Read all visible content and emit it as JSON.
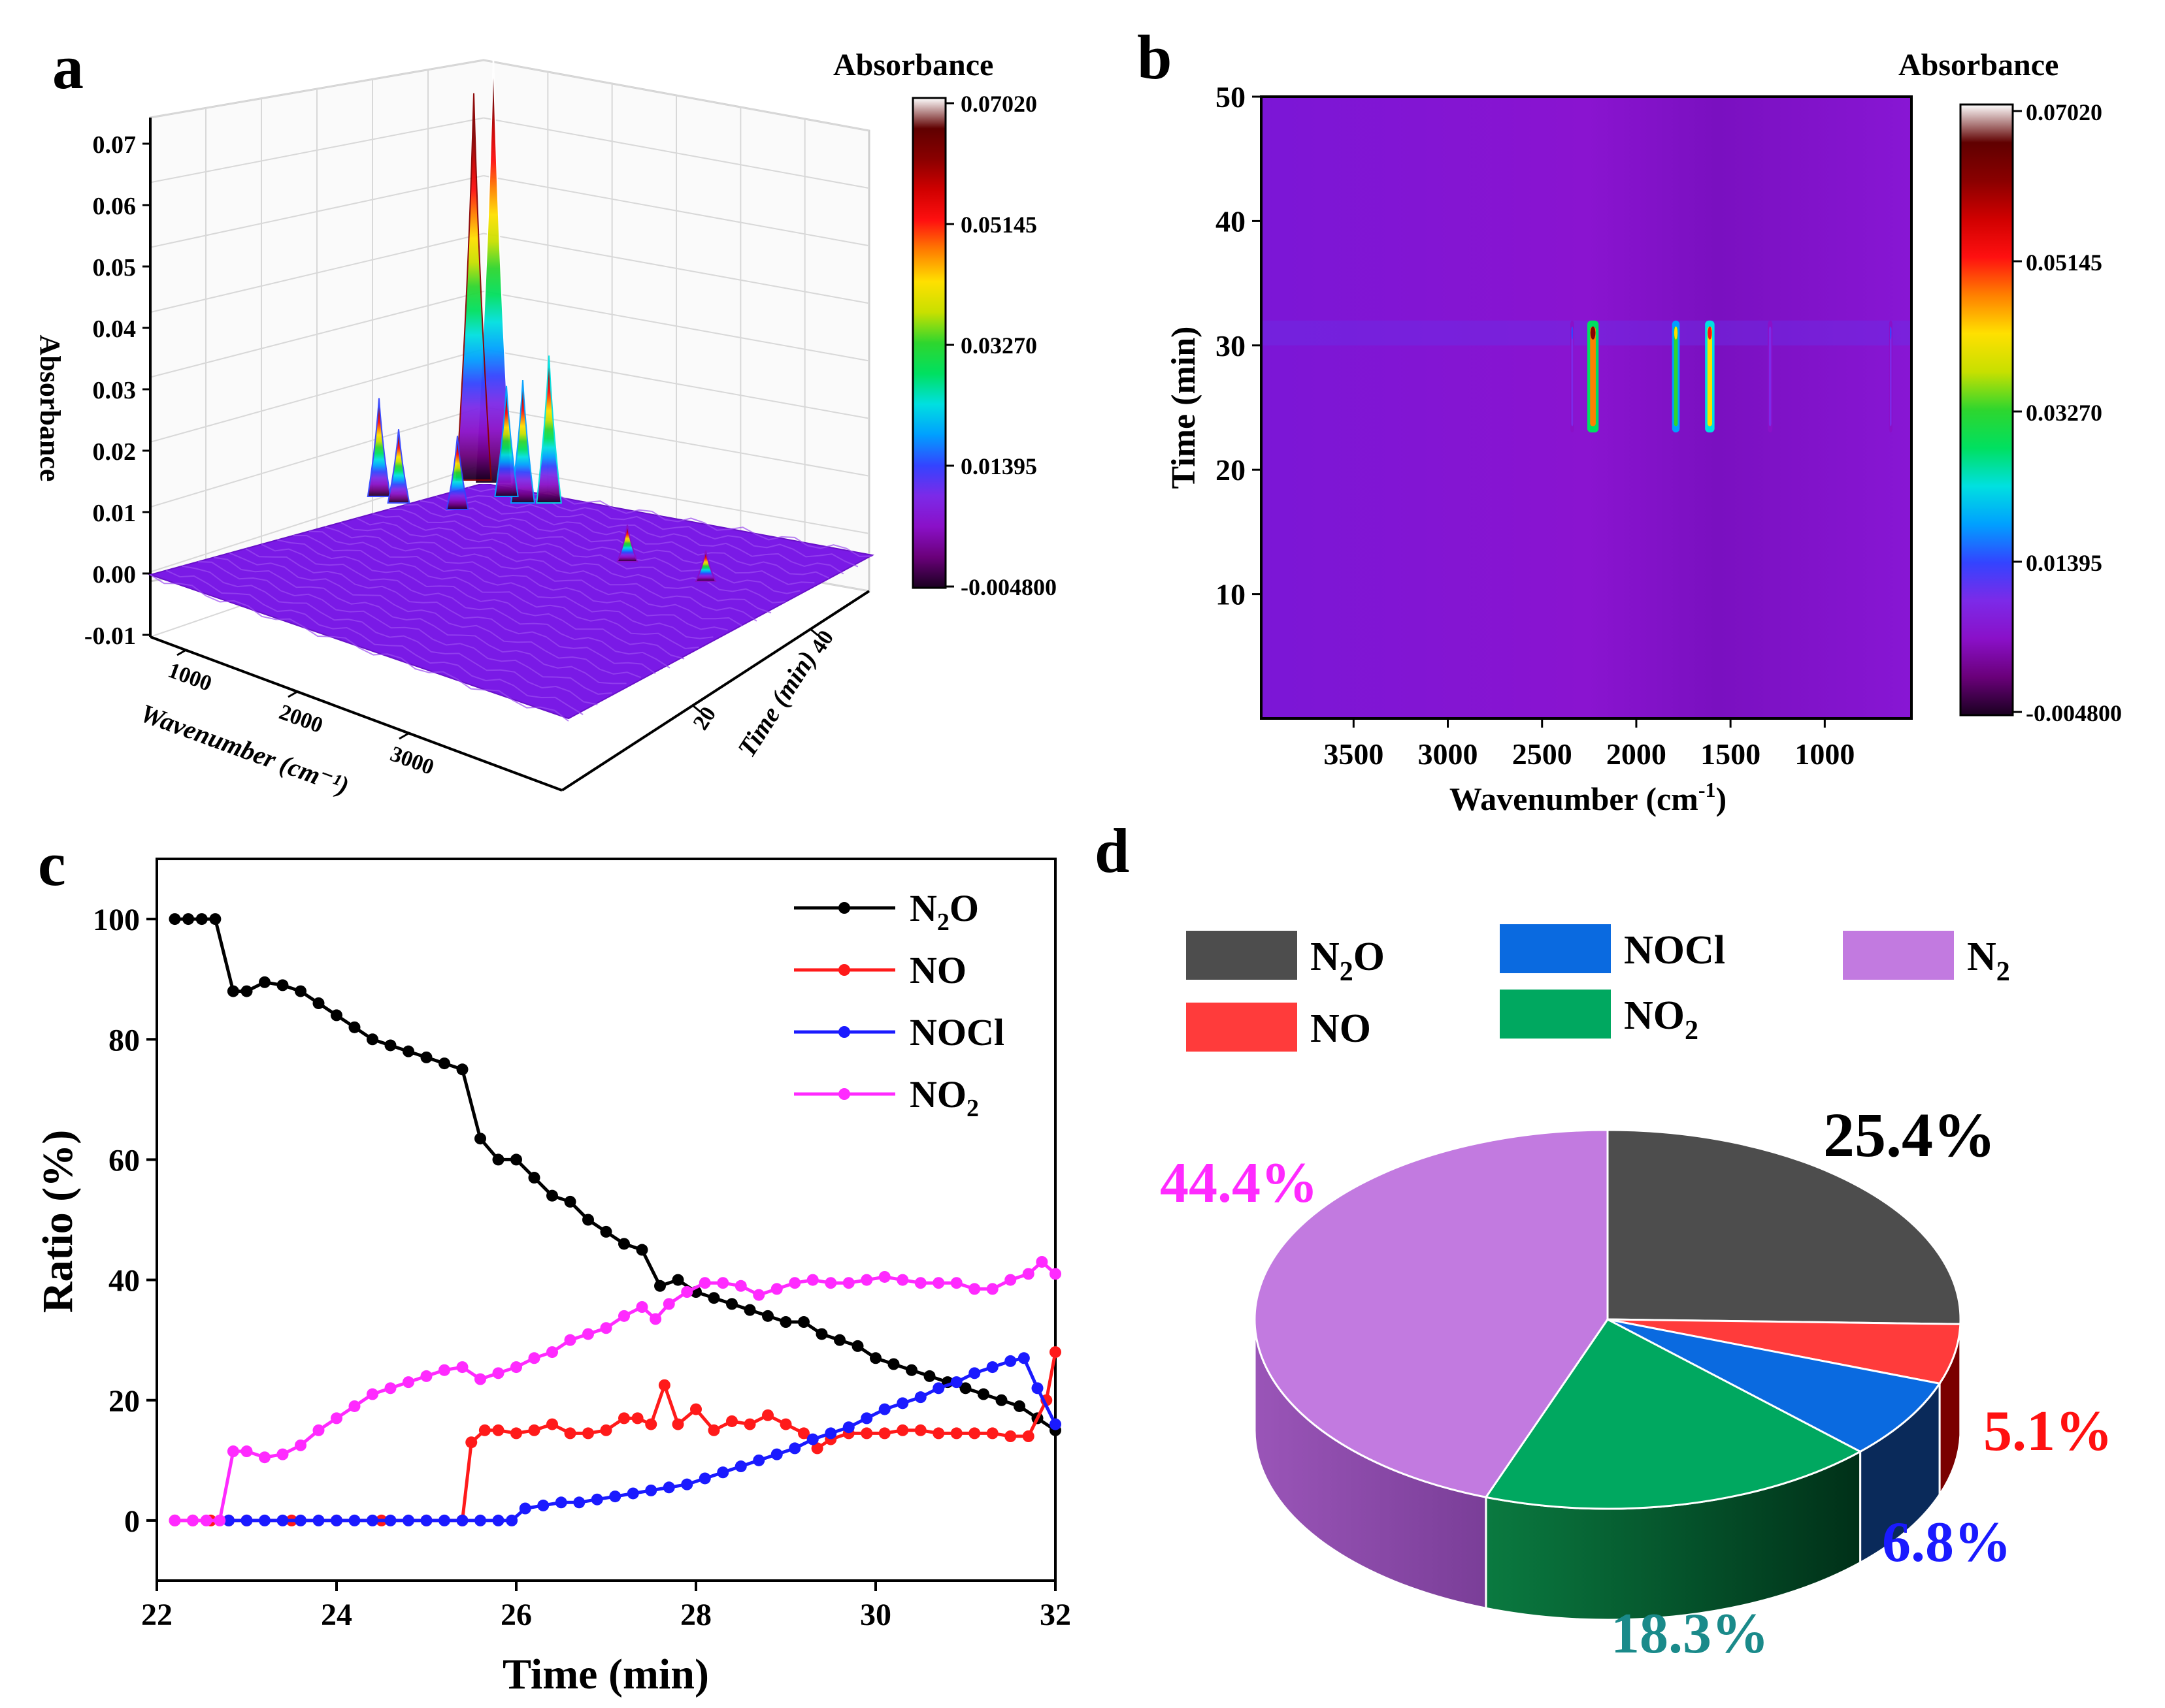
{
  "colors": {
    "colormap": [
      "#1a0020",
      "#6a007a",
      "#8a10c8",
      "#7c2ae8",
      "#3344ff",
      "#00a0ff",
      "#00e0e0",
      "#00e060",
      "#2ed62e",
      "#c8e000",
      "#ffe000",
      "#ff8000",
      "#ff1010",
      "#d00000",
      "#8a0000",
      "#600000",
      "#ffffff"
    ],
    "n2o": "#000000",
    "no": "#ff1a1a",
    "nocl": "#1a1aff",
    "no2": "#ff2aff",
    "pie_n2o": "#4d4d4d",
    "pie_no": "#ff3b3b",
    "pie_nocl": "#0a6ae0",
    "pie_no2": "#00a860",
    "pie_n2": "#c27ae0"
  },
  "chart_data": [
    {
      "panel": "a",
      "type": "surface3d",
      "zlabel": "Absorbance",
      "xlabel": "Wavenumber (cm⁻¹)",
      "ylabel": "Time (min)",
      "zticks": [
        "0.07",
        "0.06",
        "0.05",
        "0.04",
        "0.03",
        "0.02",
        "0.01",
        "0.00",
        "-0.01"
      ],
      "xticks": [
        "1000",
        "2000",
        "3000"
      ],
      "yticks": [
        "20",
        "40"
      ],
      "colorbar": {
        "title": "Absorbance",
        "ticks": [
          "0.07020",
          "0.05145",
          "0.03270",
          "0.01395",
          "-0.004800"
        ]
      }
    },
    {
      "panel": "b",
      "type": "heatmap",
      "xlabel_main": "Wavenumber (cm",
      "xlabel_sup": "-1",
      "xlabel_close": ")",
      "ylabel": "Time (min)",
      "xticks": [
        "3500",
        "3000",
        "2500",
        "2000",
        "1500",
        "1000"
      ],
      "yticks": [
        "50",
        "40",
        "30",
        "20",
        "10"
      ],
      "colorbar": {
        "title": "Absorbance",
        "ticks": [
          "0.07020",
          "0.05145",
          "0.03270",
          "0.01395",
          "-0.004800"
        ]
      }
    },
    {
      "panel": "c",
      "type": "line",
      "xlabel": "Time (min)",
      "ylabel": "Ratio (%)",
      "xlim": [
        22,
        32
      ],
      "ylim": [
        -10,
        110
      ],
      "xticks": [
        "22",
        "24",
        "26",
        "28",
        "30",
        "32"
      ],
      "yticks": [
        "0",
        "20",
        "40",
        "60",
        "80",
        "100"
      ],
      "series": [
        {
          "name": "N2O",
          "label": "N",
          "sub": "2",
          "tail": "O",
          "x": [
            22.2,
            22.35,
            22.5,
            22.65,
            22.85,
            23.0,
            23.2,
            23.4,
            23.6,
            23.8,
            24.0,
            24.2,
            24.4,
            24.6,
            24.8,
            25.0,
            25.2,
            25.4,
            25.6,
            25.8,
            26.0,
            26.2,
            26.4,
            26.6,
            26.8,
            27.0,
            27.2,
            27.4,
            27.6,
            27.8,
            28.0,
            28.2,
            28.4,
            28.6,
            28.8,
            29.0,
            29.2,
            29.4,
            29.6,
            29.8,
            30.0,
            30.2,
            30.4,
            30.6,
            30.8,
            31.0,
            31.2,
            31.4,
            31.6,
            31.8,
            32.0
          ],
          "y": [
            100,
            100,
            100,
            100,
            88,
            88,
            89.5,
            89,
            88,
            86,
            84,
            82,
            80,
            79,
            78,
            77,
            76,
            75,
            63.5,
            60,
            60,
            57,
            54,
            53,
            50,
            48,
            46,
            45,
            39,
            40,
            38,
            37,
            36,
            35,
            34,
            33,
            33,
            31,
            30,
            29,
            27,
            26,
            25,
            24,
            23,
            22,
            21,
            20,
            19,
            17,
            15
          ]
        },
        {
          "name": "NO",
          "label": "NO",
          "sub": "",
          "tail": "",
          "x": [
            22.2,
            22.4,
            22.6,
            22.8,
            23.0,
            23.5,
            24.0,
            24.5,
            25.0,
            25.4,
            25.5,
            25.65,
            25.8,
            26.0,
            26.2,
            26.4,
            26.6,
            26.8,
            27.0,
            27.2,
            27.35,
            27.5,
            27.65,
            27.8,
            28.0,
            28.2,
            28.4,
            28.6,
            28.8,
            29.0,
            29.2,
            29.35,
            29.5,
            29.7,
            29.9,
            30.1,
            30.3,
            30.5,
            30.7,
            30.9,
            31.1,
            31.3,
            31.5,
            31.7,
            31.9,
            32.0
          ],
          "y": [
            0,
            0,
            0,
            0,
            0,
            0,
            0,
            0,
            0,
            0,
            13,
            15,
            15,
            14.5,
            15,
            16,
            14.5,
            14.5,
            15,
            17,
            17,
            16,
            22.5,
            16,
            18.5,
            15,
            16.5,
            16,
            17.5,
            16,
            14.5,
            12,
            13.5,
            14.5,
            14.5,
            14.5,
            15,
            15,
            14.5,
            14.5,
            14.5,
            14.5,
            14,
            14,
            20,
            28
          ]
        },
        {
          "name": "NOCl",
          "label": "NOCl",
          "sub": "",
          "tail": "",
          "x": [
            22.8,
            23.0,
            23.2,
            23.4,
            23.6,
            23.8,
            24.0,
            24.2,
            24.4,
            24.6,
            24.8,
            25.0,
            25.2,
            25.4,
            25.6,
            25.8,
            25.95,
            26.1,
            26.3,
            26.5,
            26.7,
            26.9,
            27.1,
            27.3,
            27.5,
            27.7,
            27.9,
            28.1,
            28.3,
            28.5,
            28.7,
            28.9,
            29.1,
            29.3,
            29.5,
            29.7,
            29.9,
            30.1,
            30.3,
            30.5,
            30.7,
            30.9,
            31.1,
            31.3,
            31.5,
            31.65,
            31.8,
            32.0
          ],
          "y": [
            0,
            0,
            0,
            0,
            0,
            0,
            0,
            0,
            0,
            0,
            0,
            0,
            0,
            0,
            0,
            0,
            0,
            2,
            2.5,
            3,
            3,
            3.5,
            4,
            4.5,
            5,
            5.5,
            6,
            7,
            8,
            9,
            10,
            11,
            12,
            13.5,
            14.5,
            15.5,
            17,
            18.5,
            19.5,
            20.5,
            22,
            23,
            24.5,
            25.5,
            26.5,
            27,
            22,
            16
          ]
        },
        {
          "name": "NO2",
          "label": "NO",
          "sub": "2",
          "tail": "",
          "x": [
            22.2,
            22.4,
            22.55,
            22.7,
            22.85,
            23.0,
            23.2,
            23.4,
            23.6,
            23.8,
            24.0,
            24.2,
            24.4,
            24.6,
            24.8,
            25.0,
            25.2,
            25.4,
            25.6,
            25.8,
            26.0,
            26.2,
            26.4,
            26.6,
            26.8,
            27.0,
            27.2,
            27.4,
            27.55,
            27.7,
            27.9,
            28.1,
            28.3,
            28.5,
            28.7,
            28.9,
            29.1,
            29.3,
            29.5,
            29.7,
            29.9,
            30.1,
            30.3,
            30.5,
            30.7,
            30.9,
            31.1,
            31.3,
            31.5,
            31.7,
            31.85,
            32.0
          ],
          "y": [
            0,
            0,
            0,
            0,
            11.5,
            11.5,
            10.5,
            11,
            12.5,
            15,
            17,
            19,
            21,
            22,
            23,
            24,
            25,
            25.5,
            23.5,
            24.5,
            25.5,
            27,
            28,
            30,
            31,
            32,
            34,
            35.5,
            33.5,
            36,
            38,
            39.5,
            39.5,
            39,
            37.5,
            38.5,
            39.5,
            40,
            39.5,
            39.5,
            40,
            40.5,
            40,
            39.5,
            39.5,
            39.5,
            38.5,
            38.5,
            40,
            41,
            43,
            41
          ]
        }
      ]
    },
    {
      "panel": "d",
      "type": "pie",
      "style": "3d",
      "slices": [
        {
          "name": "N2O",
          "value": 25.4,
          "pct_label": "25.4%"
        },
        {
          "name": "NO",
          "value": 5.1,
          "pct_label": "5.1%"
        },
        {
          "name": "NOCl",
          "value": 6.8,
          "pct_label": "6.8%"
        },
        {
          "name": "NO2",
          "value": 18.3,
          "pct_label": "18.3%"
        },
        {
          "name": "N2",
          "value": 44.4,
          "pct_label": "44.4%"
        }
      ],
      "legend": [
        {
          "label": "N",
          "sub": "2",
          "tail": "O"
        },
        {
          "label": "NO",
          "sub": "",
          "tail": ""
        },
        {
          "label": "NOCl",
          "sub": "",
          "tail": ""
        },
        {
          "label": "NO",
          "sub": "2",
          "tail": ""
        },
        {
          "label": "N",
          "sub": "2",
          "tail": ""
        }
      ]
    }
  ],
  "panel_labels": [
    "a",
    "b",
    "c",
    "d"
  ]
}
